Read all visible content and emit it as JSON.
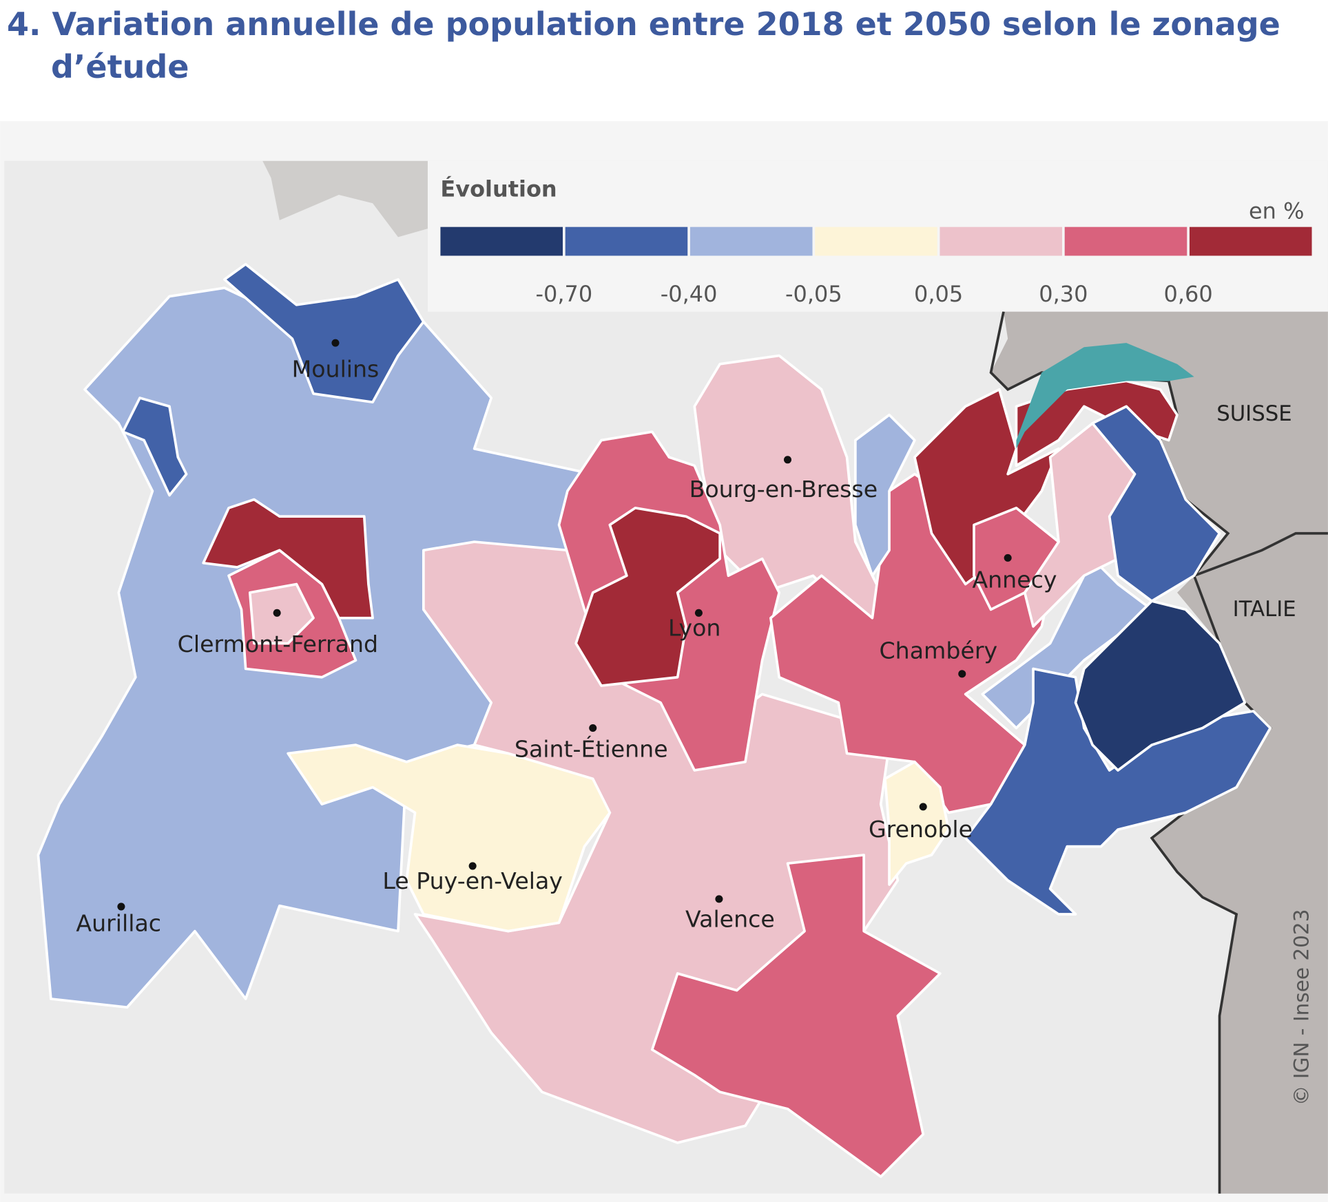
{
  "title": "4. Variation annuelle de population entre 2018 et 2050 selon le zonage d’étude",
  "legend": {
    "title": "Évolution",
    "unit": "en %",
    "colors": [
      "#233a6e",
      "#4262a8",
      "#a1b4dd",
      "#fdf4d8",
      "#edc2cb",
      "#d9627d",
      "#a22a37"
    ],
    "breaks": [
      {
        "value": -0.7,
        "label": "-0,70"
      },
      {
        "value": -0.4,
        "label": "-0,40"
      },
      {
        "value": -0.05,
        "label": "-0,05"
      },
      {
        "value": 0.05,
        "label": "0,05"
      },
      {
        "value": 0.3,
        "label": "0,30"
      },
      {
        "value": 0.6,
        "label": "0,60"
      }
    ]
  },
  "cities": [
    "Moulins",
    "Bourg-en-Bresse",
    "Clermont-Ferrand",
    "Lyon",
    "Annecy",
    "Chambéry",
    "Saint-Étienne",
    "Grenoble",
    "Le Puy-en-Velay",
    "Valence",
    "Aurillac"
  ],
  "countries": [
    "SUISSE",
    "ITALIE"
  ],
  "source": "© IGN - Insee 2023"
}
